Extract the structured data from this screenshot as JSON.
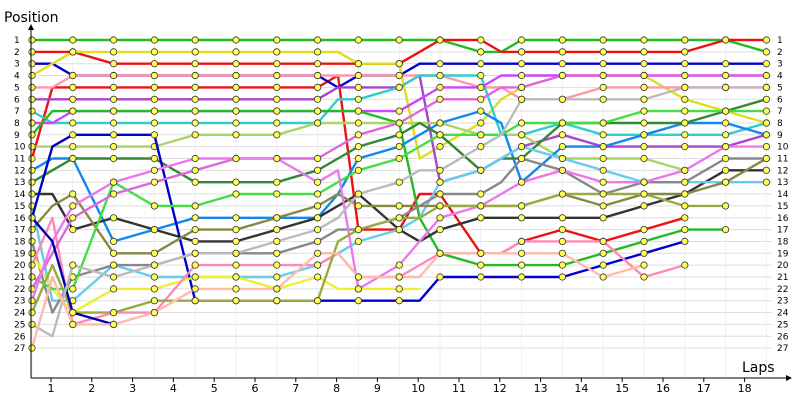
{
  "chart_data": {
    "type": "line",
    "ylabel": "Position",
    "xlabel": "Laps",
    "x": [
      0,
      0.5,
      1,
      2,
      3,
      4,
      5,
      6,
      7,
      7.5,
      8,
      9,
      9.5,
      10,
      11,
      11.5,
      12,
      13,
      14,
      15,
      16,
      17,
      18
    ],
    "xticks": [
      1,
      2,
      3,
      4,
      5,
      6,
      7,
      8,
      9,
      10,
      11,
      12,
      13,
      14,
      15,
      16,
      17,
      18
    ],
    "positions": [
      "1",
      "2",
      "3",
      "4",
      "5",
      "6",
      "7",
      "8",
      "9",
      "10",
      "11",
      "12",
      "13",
      "14",
      "15",
      "16",
      "17",
      "18",
      "19",
      "20",
      "21",
      "22",
      "23",
      "24",
      "25",
      "26",
      "27"
    ],
    "xlim": [
      0,
      18.5
    ],
    "ylim": [
      1,
      27
    ],
    "grid": true,
    "series": [
      {
        "color": "#22bb22",
        "values": [
          1,
          1,
          1,
          1,
          1,
          1,
          1,
          1,
          1,
          1,
          1,
          1,
          1,
          1,
          2,
          2,
          1,
          1,
          1,
          1,
          1,
          1,
          2
        ]
      },
      {
        "color": "#ee1111",
        "values": [
          11,
          5,
          5,
          5,
          5,
          5,
          5,
          5,
          5,
          4,
          17,
          17,
          14,
          14,
          19,
          19,
          18,
          17,
          18,
          17,
          16,
          null,
          null
        ]
      },
      {
        "color": "#ee1111",
        "values": [
          2,
          2,
          2,
          3,
          3,
          3,
          3,
          3,
          3,
          3,
          3,
          3,
          2,
          1,
          1,
          2,
          2,
          2,
          2,
          2,
          2,
          1,
          1
        ]
      },
      {
        "color": "#0000cc",
        "values": [
          3,
          3,
          4,
          4,
          4,
          4,
          4,
          4,
          4,
          5,
          4,
          4,
          3,
          3,
          3,
          3,
          3,
          3,
          3,
          3,
          3,
          3,
          3
        ]
      },
      {
        "color": "#dddd22",
        "values": [
          4,
          3,
          2,
          2,
          2,
          2,
          2,
          2,
          2,
          2,
          3,
          3,
          11,
          10,
          8,
          6,
          5,
          4,
          4,
          4,
          6,
          7,
          8
        ]
      },
      {
        "color": "#ff99aa",
        "values": [
          5,
          5,
          4,
          4,
          4,
          4,
          4,
          4,
          4,
          4,
          4,
          4,
          4,
          4,
          5,
          5,
          6,
          6,
          5,
          5,
          5,
          5,
          5
        ]
      },
      {
        "color": "#aa44cc",
        "values": [
          6,
          6,
          6,
          6,
          6,
          6,
          6,
          6,
          6,
          5,
          5,
          5,
          4,
          13,
          12,
          11,
          10,
          9,
          10,
          10,
          10,
          10,
          9
        ]
      },
      {
        "color": "#33cccc",
        "values": [
          7,
          8,
          8,
          8,
          8,
          8,
          8,
          8,
          8,
          6,
          6,
          5,
          4,
          4,
          4,
          9,
          9,
          8,
          9,
          9,
          9,
          9,
          8
        ]
      },
      {
        "color": "#cc44ff",
        "values": [
          8,
          8,
          7,
          7,
          7,
          7,
          7,
          7,
          7,
          7,
          7,
          7,
          6,
          5,
          5,
          4,
          4,
          4,
          4,
          4,
          4,
          4,
          4
        ]
      },
      {
        "color": "#22bb22",
        "values": [
          9,
          7,
          7,
          7,
          7,
          7,
          7,
          7,
          7,
          7,
          7,
          8,
          16,
          19,
          20,
          20,
          20,
          20,
          19,
          18,
          17,
          17,
          null
        ]
      },
      {
        "color": "#aad466",
        "values": [
          10,
          10,
          10,
          10,
          10,
          9,
          9,
          9,
          8,
          8,
          8,
          8,
          8,
          8,
          9,
          9,
          9,
          11,
          11,
          11,
          12,
          null,
          null
        ]
      },
      {
        "color": "#1188ee",
        "values": [
          12,
          11,
          11,
          18,
          17,
          16,
          16,
          16,
          16,
          14,
          11,
          10,
          9,
          8,
          7,
          8,
          13,
          10,
          10,
          9,
          8,
          8,
          9
        ]
      },
      {
        "color": "#338833",
        "values": [
          13,
          12,
          11,
          11,
          11,
          13,
          13,
          13,
          12,
          11,
          10,
          9,
          8,
          9,
          12,
          11,
          11,
          8,
          8,
          8,
          8,
          7,
          6
        ]
      },
      {
        "color": "#333333",
        "values": [
          14,
          14,
          17,
          16,
          17,
          18,
          18,
          17,
          16,
          15,
          14,
          17,
          18,
          17,
          16,
          16,
          16,
          16,
          16,
          15,
          14,
          12,
          12
        ]
      },
      {
        "color": "#66ccee",
        "values": [
          15,
          23,
          23,
          20,
          21,
          21,
          21,
          21,
          20,
          19,
          18,
          17,
          16,
          13,
          12,
          11,
          10,
          11,
          12,
          13,
          13,
          13,
          13
        ]
      },
      {
        "color": "#0000cc",
        "values": [
          16,
          10,
          9,
          9,
          9,
          23,
          23,
          23,
          23,
          23,
          23,
          23,
          23,
          21,
          21,
          21,
          21,
          21,
          20,
          19,
          18,
          null,
          null
        ]
      },
      {
        "color": "#888844",
        "values": [
          17,
          15,
          14,
          19,
          19,
          17,
          17,
          16,
          15,
          14,
          15,
          15,
          15,
          15,
          15,
          15,
          15,
          14,
          15,
          14,
          14,
          13,
          11
        ]
      },
      {
        "color": "#888888",
        "values": [
          18,
          24,
          21,
          20,
          20,
          19,
          19,
          19,
          18,
          17,
          17,
          16,
          15,
          14,
          14,
          13,
          11,
          12,
          14,
          13,
          13,
          11,
          11
        ]
      },
      {
        "color": "#eeee33",
        "values": [
          19,
          22,
          24,
          22,
          22,
          21,
          21,
          22,
          21,
          22,
          22,
          22,
          22,
          null,
          null,
          null,
          null,
          null,
          null,
          null,
          null,
          null,
          null
        ]
      },
      {
        "color": "#ff88bb",
        "values": [
          20,
          16,
          25,
          24,
          24,
          20,
          20,
          20,
          20,
          19,
          21,
          21,
          20,
          19,
          19,
          19,
          18,
          18,
          18,
          21,
          20,
          null,
          null
        ]
      },
      {
        "color": "#44dd44",
        "values": [
          21,
          22,
          22,
          13,
          15,
          15,
          14,
          14,
          14,
          13,
          12,
          11,
          10,
          9,
          9,
          9,
          8,
          8,
          8,
          7,
          7,
          7,
          7
        ]
      },
      {
        "color": "#dd66dd",
        "values": [
          22,
          19,
          16,
          14,
          13,
          12,
          11,
          11,
          11,
          10,
          9,
          8,
          7,
          6,
          6,
          5,
          5,
          4,
          4,
          4,
          4,
          4,
          4
        ]
      },
      {
        "color": "#ee77ee",
        "values": [
          23,
          18,
          15,
          13,
          12,
          11,
          11,
          11,
          13,
          12,
          22,
          20,
          18,
          16,
          15,
          14,
          13,
          12,
          13,
          13,
          12,
          10,
          10
        ]
      },
      {
        "color": "#99aa44",
        "values": [
          24,
          20,
          24,
          24,
          23,
          23,
          23,
          23,
          23,
          18,
          17,
          16,
          16,
          15,
          15,
          15,
          15,
          14,
          14,
          14,
          15,
          15,
          null
        ]
      },
      {
        "color": "#0000aa",
        "values": [
          16,
          18,
          24,
          25,
          null,
          null,
          null,
          null,
          null,
          null,
          null,
          null,
          null,
          null,
          null,
          null,
          null,
          null,
          null,
          null,
          null,
          null,
          null
        ]
      },
      {
        "color": "#bbbbbb",
        "values": [
          25,
          26,
          20,
          21,
          20,
          19,
          19,
          18,
          17,
          16,
          14,
          13,
          12,
          12,
          10,
          9,
          6,
          6,
          6,
          6,
          5,
          5,
          5
        ]
      },
      {
        "color": "#ffbbaa",
        "values": [
          27,
          21,
          25,
          25,
          24,
          22,
          22,
          22,
          19,
          19,
          21,
          21,
          21,
          19,
          19,
          19,
          19,
          19,
          21,
          20,
          null,
          null,
          null
        ]
      }
    ]
  }
}
